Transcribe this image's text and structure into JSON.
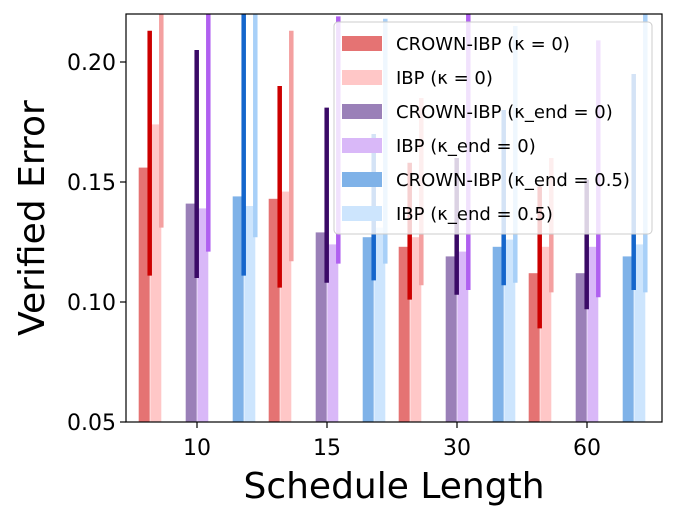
{
  "chart_data": {
    "type": "bar",
    "title": "",
    "xlabel": "Schedule Length",
    "ylabel": "Verified Error",
    "categories": [
      "10",
      "15",
      "30",
      "60"
    ],
    "ylim": [
      0.05,
      0.22
    ],
    "yticks": [
      "0.05",
      "0.10",
      "0.15",
      "0.20"
    ],
    "ytick_values": [
      0.05,
      0.1,
      0.15,
      0.2
    ],
    "grid": false,
    "legend_position": "top-right",
    "series": [
      {
        "name": "CROWN-IBP",
        "kappa_label": "(κ = 0)",
        "bar_color": "#e57373",
        "line_color": "#cc0000",
        "values": [
          0.156,
          0.143,
          0.123,
          0.112
        ],
        "err_low": [
          0.111,
          0.106,
          0.101,
          0.089
        ],
        "err_high": [
          0.213,
          0.19,
          0.158,
          0.148
        ]
      },
      {
        "name": "IBP",
        "kappa_label": "(κ = 0)",
        "bar_color": "#ffc7c7",
        "line_color": "#f4a0a0",
        "values": [
          0.174,
          0.146,
          0.127,
          0.123
        ],
        "err_low": [
          0.131,
          0.117,
          0.107,
          0.104
        ],
        "err_high": [
          0.222,
          0.213,
          0.185,
          0.16
        ]
      },
      {
        "name": "CROWN-IBP",
        "kappa_label": "(κ_end = 0)",
        "bar_color": "#9a80b8",
        "line_color": "#3a0a66",
        "values": [
          0.141,
          0.129,
          0.119,
          0.112
        ],
        "err_low": [
          0.11,
          0.108,
          0.103,
          0.097
        ],
        "err_high": [
          0.205,
          0.181,
          0.16,
          0.151
        ]
      },
      {
        "name": "IBP",
        "kappa_label": "(κ_end = 0)",
        "bar_color": "#d9b8f8",
        "line_color": "#b060f0",
        "values": [
          0.139,
          0.124,
          0.121,
          0.123
        ],
        "err_low": [
          0.121,
          0.116,
          0.105,
          0.102
        ],
        "err_high": [
          0.222,
          0.219,
          0.222,
          0.209
        ]
      },
      {
        "name": "CROWN-IBP",
        "kappa_label": "(κ_end = 0.5)",
        "bar_color": "#7fb2e8",
        "line_color": "#1566cc",
        "values": [
          0.144,
          0.127,
          0.123,
          0.119
        ],
        "err_low": [
          0.111,
          0.109,
          0.107,
          0.105
        ],
        "err_high": [
          0.222,
          0.17,
          0.18,
          0.195
        ]
      },
      {
        "name": "IBP",
        "kappa_label": "(κ_end = 0.5)",
        "bar_color": "#cde5fd",
        "line_color": "#a8d0f8",
        "values": [
          0.14,
          0.131,
          0.126,
          0.124
        ],
        "err_low": [
          0.127,
          0.116,
          0.108,
          0.104
        ],
        "err_high": [
          0.222,
          0.218,
          0.215,
          0.222
        ]
      }
    ]
  }
}
